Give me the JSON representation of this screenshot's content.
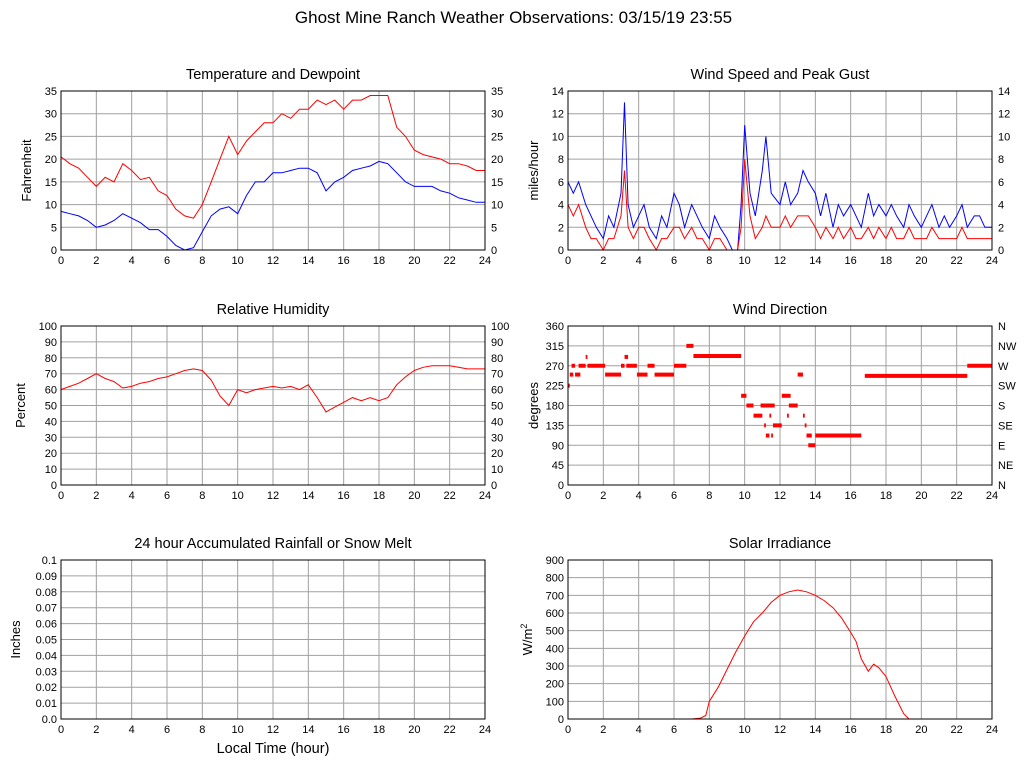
{
  "title": "Ghost Mine Ranch Weather Observations: 03/15/19 23:55",
  "x_axis_label": "Local Time (hour)",
  "colors": {
    "red": "#ff0000",
    "blue": "#0000ff",
    "grid": "#a0a0a0",
    "frame": "#000000"
  },
  "chart_data": [
    {
      "id": "temp",
      "type": "line",
      "title": "Temperature and Dewpoint",
      "ylabel": "Fahrenheit",
      "xlim": [
        0,
        24
      ],
      "ylim": [
        0,
        35
      ],
      "xticks": [
        0,
        2,
        4,
        6,
        8,
        10,
        12,
        14,
        16,
        18,
        20,
        22,
        24
      ],
      "yticks": [
        0,
        5,
        10,
        15,
        20,
        25,
        30,
        35
      ],
      "right_ticks": [
        "0",
        "5",
        "10",
        "15",
        "20",
        "25",
        "30",
        "35"
      ],
      "series": [
        {
          "color": "red",
          "x": [
            0,
            0.5,
            1,
            1.5,
            2,
            2.5,
            3,
            3.5,
            4,
            4.5,
            5,
            5.5,
            6,
            6.5,
            7,
            7.5,
            8,
            8.5,
            9,
            9.5,
            10,
            10.5,
            11,
            11.5,
            12,
            12.5,
            13,
            13.5,
            14,
            14.5,
            15,
            15.5,
            16,
            16.5,
            17,
            17.5,
            18,
            18.5,
            19,
            19.5,
            20,
            20.5,
            21,
            21.5,
            22,
            22.5,
            23,
            23.5,
            24
          ],
          "y": [
            20.5,
            19,
            18,
            16,
            14,
            16,
            15,
            19,
            17.5,
            15.5,
            16,
            13,
            12,
            9,
            7.5,
            7,
            10,
            15,
            20,
            25,
            21,
            24,
            26,
            28,
            28,
            30,
            29,
            31,
            31,
            33,
            32,
            33,
            31,
            33,
            33,
            34,
            34,
            34,
            27,
            25,
            22,
            21,
            20.5,
            20,
            19,
            19,
            18.5,
            17.5,
            17.5
          ]
        },
        {
          "color": "blue",
          "x": [
            0,
            0.5,
            1,
            1.5,
            2,
            2.5,
            3,
            3.5,
            4,
            4.5,
            5,
            5.5,
            6,
            6.5,
            7,
            7.5,
            8,
            8.5,
            9,
            9.5,
            10,
            10.5,
            11,
            11.5,
            12,
            12.5,
            13,
            13.5,
            14,
            14.5,
            15,
            15.5,
            16,
            16.5,
            17,
            17.5,
            18,
            18.5,
            19,
            19.5,
            20,
            20.5,
            21,
            21.5,
            22,
            22.5,
            23,
            23.5,
            24
          ],
          "y": [
            8.5,
            8,
            7.5,
            6.5,
            5,
            5.5,
            6.5,
            8,
            7,
            6,
            4.5,
            4.5,
            3,
            1,
            0,
            0.5,
            4,
            7.5,
            9,
            9.5,
            8,
            12,
            15,
            15,
            17,
            17,
            17.5,
            18,
            18,
            17,
            13,
            15,
            16,
            17.5,
            18,
            18.5,
            19.5,
            19,
            17,
            15,
            14,
            14,
            14,
            13,
            12.5,
            11.5,
            11,
            10.5,
            10.5
          ]
        }
      ]
    },
    {
      "id": "wind",
      "type": "line",
      "title": "Wind Speed and Peak Gust",
      "ylabel": "miles/hour",
      "xlim": [
        0,
        24
      ],
      "ylim": [
        0,
        14
      ],
      "xticks": [
        0,
        2,
        4,
        6,
        8,
        10,
        12,
        14,
        16,
        18,
        20,
        22,
        24
      ],
      "yticks": [
        0,
        2,
        4,
        6,
        8,
        10,
        12,
        14
      ],
      "right_ticks": [
        "0",
        "2",
        "4",
        "6",
        "8",
        "10",
        "12",
        "14"
      ],
      "series": [
        {
          "color": "blue",
          "x": [
            0,
            0.3,
            0.6,
            1,
            1.3,
            1.6,
            2,
            2.3,
            2.6,
            3,
            3.2,
            3.4,
            3.7,
            4,
            4.3,
            4.6,
            5,
            5.3,
            5.6,
            6,
            6.3,
            6.6,
            7,
            7.3,
            7.6,
            8,
            8.3,
            8.6,
            9,
            9.3,
            9.6,
            9.8,
            10,
            10.3,
            10.6,
            11,
            11.2,
            11.5,
            12,
            12.3,
            12.6,
            13,
            13.3,
            13.6,
            14,
            14.3,
            14.6,
            15,
            15.3,
            15.6,
            16,
            16.3,
            16.6,
            17,
            17.3,
            17.6,
            18,
            18.3,
            18.6,
            19,
            19.3,
            19.6,
            20,
            20.3,
            20.6,
            21,
            21.3,
            21.6,
            22,
            22.3,
            22.6,
            23,
            23.3,
            23.6,
            24
          ],
          "y": [
            6,
            5,
            6,
            4,
            3,
            2,
            1,
            3,
            2,
            5,
            13,
            4,
            2,
            3,
            4,
            2,
            1,
            3,
            2,
            5,
            4,
            2,
            4,
            3,
            2,
            1,
            3,
            2,
            1,
            0,
            0,
            4,
            11,
            5,
            3,
            7,
            10,
            5,
            4,
            6,
            4,
            5,
            7,
            6,
            5,
            3,
            5,
            2,
            4,
            3,
            4,
            3,
            2,
            5,
            3,
            4,
            3,
            4,
            3,
            2,
            4,
            3,
            2,
            3,
            4,
            2,
            3,
            2,
            3,
            4,
            2,
            3,
            3,
            2,
            2
          ]
        },
        {
          "color": "red",
          "x": [
            0,
            0.3,
            0.6,
            1,
            1.3,
            1.6,
            2,
            2.3,
            2.6,
            3,
            3.2,
            3.4,
            3.7,
            4,
            4.3,
            4.6,
            5,
            5.3,
            5.6,
            6,
            6.3,
            6.6,
            7,
            7.3,
            7.6,
            8,
            8.3,
            8.6,
            9,
            9.3,
            9.6,
            9.8,
            10,
            10.3,
            10.6,
            11,
            11.2,
            11.5,
            12,
            12.3,
            12.6,
            13,
            13.3,
            13.6,
            14,
            14.3,
            14.6,
            15,
            15.3,
            15.6,
            16,
            16.3,
            16.6,
            17,
            17.3,
            17.6,
            18,
            18.3,
            18.6,
            19,
            19.3,
            19.6,
            20,
            20.3,
            20.6,
            21,
            21.3,
            21.6,
            22,
            22.3,
            22.6,
            23,
            23.3,
            23.6,
            24
          ],
          "y": [
            4,
            3,
            4,
            2,
            1,
            1,
            0,
            1,
            1,
            3,
            7,
            2,
            1,
            2,
            2,
            1,
            0,
            1,
            1,
            2,
            2,
            1,
            2,
            1,
            1,
            0,
            1,
            1,
            0,
            0,
            0,
            2,
            8,
            3,
            1,
            2,
            3,
            2,
            2,
            3,
            2,
            3,
            3,
            3,
            2,
            1,
            2,
            1,
            2,
            1,
            2,
            1,
            1,
            2,
            1,
            2,
            1,
            2,
            1,
            1,
            2,
            1,
            1,
            1,
            2,
            1,
            1,
            1,
            1,
            2,
            1,
            1,
            1,
            1,
            1
          ]
        }
      ]
    },
    {
      "id": "rh",
      "type": "line",
      "title": "Relative Humidity",
      "ylabel": "Percent",
      "xlim": [
        0,
        24
      ],
      "ylim": [
        0,
        100
      ],
      "xticks": [
        0,
        2,
        4,
        6,
        8,
        10,
        12,
        14,
        16,
        18,
        20,
        22,
        24
      ],
      "yticks": [
        0,
        10,
        20,
        30,
        40,
        50,
        60,
        70,
        80,
        90,
        100
      ],
      "right_ticks": [
        "0",
        "10",
        "20",
        "30",
        "40",
        "50",
        "60",
        "70",
        "80",
        "90",
        "100"
      ],
      "series": [
        {
          "color": "red",
          "x": [
            0,
            0.5,
            1,
            1.5,
            2,
            2.5,
            3,
            3.5,
            4,
            4.5,
            5,
            5.5,
            6,
            6.5,
            7,
            7.5,
            8,
            8.5,
            9,
            9.5,
            10,
            10.5,
            11,
            11.5,
            12,
            12.5,
            13,
            13.5,
            14,
            14.5,
            15,
            15.5,
            16,
            16.5,
            17,
            17.5,
            18,
            18.5,
            19,
            19.5,
            20,
            20.5,
            21,
            21.5,
            22,
            22.5,
            23,
            23.5,
            24
          ],
          "y": [
            60,
            62,
            64,
            67,
            70,
            67,
            65,
            61,
            62,
            64,
            65,
            67,
            68,
            70,
            72,
            73,
            72,
            66,
            56,
            50,
            60,
            58,
            60,
            61,
            62,
            61,
            62,
            60,
            63,
            55,
            46,
            49,
            52,
            55,
            53,
            55,
            53,
            55,
            63,
            68,
            72,
            74,
            75,
            75,
            75,
            74,
            73,
            73,
            73
          ]
        }
      ]
    },
    {
      "id": "wdir",
      "type": "scatter",
      "title": "Wind Direction",
      "ylabel": "degrees",
      "xlim": [
        0,
        24
      ],
      "ylim": [
        0,
        360
      ],
      "xticks": [
        0,
        2,
        4,
        6,
        8,
        10,
        12,
        14,
        16,
        18,
        20,
        22,
        24
      ],
      "yticks": [
        0,
        45,
        90,
        135,
        180,
        225,
        270,
        315,
        360
      ],
      "right_ticks": [
        "N",
        "NE",
        "E",
        "SE",
        "S",
        "SW",
        "W",
        "NW",
        "N"
      ],
      "segments": [
        [
          0,
          0.1,
          225
        ],
        [
          0.1,
          0.3,
          250
        ],
        [
          0.2,
          0.4,
          270
        ],
        [
          0.4,
          0.7,
          250
        ],
        [
          0.6,
          1,
          270
        ],
        [
          1,
          1.1,
          290
        ],
        [
          1.1,
          2.1,
          270
        ],
        [
          2.1,
          3,
          250
        ],
        [
          3,
          3.2,
          270
        ],
        [
          3.2,
          3.4,
          290
        ],
        [
          3.3,
          3.9,
          270
        ],
        [
          3.9,
          4.5,
          250
        ],
        [
          4.5,
          4.9,
          270
        ],
        [
          4.9,
          6,
          250
        ],
        [
          6,
          6.7,
          270
        ],
        [
          6.7,
          7.1,
          315
        ],
        [
          7.1,
          9.8,
          292
        ],
        [
          9.8,
          10.1,
          202
        ],
        [
          10.1,
          10.5,
          180
        ],
        [
          10.5,
          11,
          157
        ],
        [
          10.9,
          11.7,
          180
        ],
        [
          11.1,
          11.2,
          135
        ],
        [
          11.2,
          11.4,
          112
        ],
        [
          11.4,
          11.5,
          157
        ],
        [
          11.5,
          11.6,
          112
        ],
        [
          11.6,
          12.1,
          135
        ],
        [
          12.1,
          12.6,
          202
        ],
        [
          12.4,
          12.5,
          157
        ],
        [
          12.5,
          13,
          180
        ],
        [
          13,
          13.3,
          250
        ],
        [
          13.3,
          13.4,
          157
        ],
        [
          13.4,
          13.5,
          135
        ],
        [
          13.5,
          13.8,
          112
        ],
        [
          13.6,
          14,
          90
        ],
        [
          14,
          16.6,
          112
        ],
        [
          16.8,
          22.6,
          247
        ],
        [
          22.6,
          24,
          270
        ]
      ]
    },
    {
      "id": "rain",
      "type": "line",
      "title": "24 hour Accumulated Rainfall or Snow Melt",
      "ylabel": "Inches",
      "xlim": [
        0,
        24
      ],
      "ylim": [
        0,
        0.1
      ],
      "xticks": [
        0,
        2,
        4,
        6,
        8,
        10,
        12,
        14,
        16,
        18,
        20,
        22,
        24
      ],
      "yticks": [
        0,
        0.01,
        0.02,
        0.03,
        0.04,
        0.05,
        0.06,
        0.07,
        0.08,
        0.09,
        0.1
      ],
      "ytick_labels": [
        "0.0",
        "0.01",
        "0.02",
        "0.03",
        "0.04",
        "0.05",
        "0.06",
        "0.07",
        "0.08",
        "0.09",
        "0.1"
      ],
      "series": [
        {
          "color": "red",
          "x": [
            0,
            24
          ],
          "y": [
            0,
            0
          ]
        }
      ]
    },
    {
      "id": "solar",
      "type": "line",
      "title": "Solar Irradiance",
      "ylabel": "W/m",
      "ylabel_sup": "2",
      "xlim": [
        0,
        24
      ],
      "ylim": [
        0,
        900
      ],
      "xticks": [
        0,
        2,
        4,
        6,
        8,
        10,
        12,
        14,
        16,
        18,
        20,
        22,
        24
      ],
      "yticks": [
        0,
        100,
        200,
        300,
        400,
        500,
        600,
        700,
        800,
        900
      ],
      "series": [
        {
          "color": "red",
          "x": [
            0,
            7,
            7.5,
            7.8,
            8,
            8.5,
            9,
            9.5,
            10,
            10.5,
            11,
            11.5,
            12,
            12.5,
            13,
            13.5,
            14,
            14.5,
            15,
            15.5,
            16,
            16.3,
            16.6,
            17,
            17.3,
            17.6,
            18,
            18.5,
            19,
            19.3,
            20,
            24
          ],
          "y": [
            0,
            0,
            5,
            20,
            100,
            180,
            280,
            380,
            470,
            550,
            600,
            660,
            700,
            720,
            730,
            720,
            700,
            670,
            630,
            570,
            490,
            440,
            340,
            270,
            310,
            290,
            240,
            130,
            30,
            0,
            0,
            0
          ]
        }
      ]
    }
  ]
}
